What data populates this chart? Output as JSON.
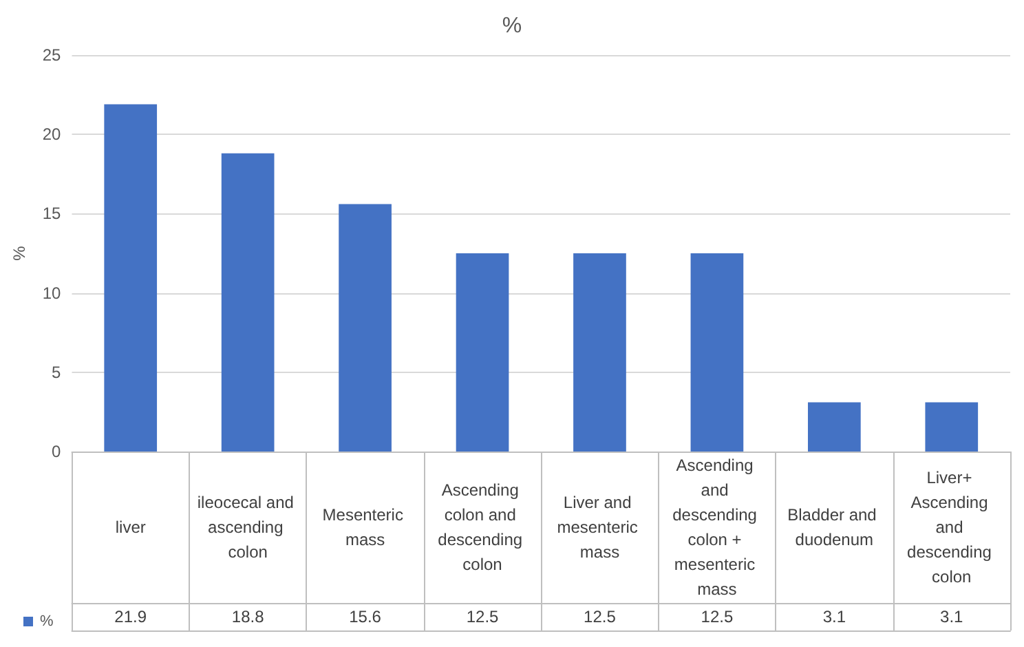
{
  "chart_data": {
    "type": "bar",
    "title": "%",
    "ylabel": "%",
    "categories": [
      "liver",
      "ileocecal and ascending colon",
      "Mesenteric mass",
      "Ascending colon and descending colon",
      "Liver and mesenteric mass",
      "Ascending and descending colon + mesenteric mass",
      "Bladder and duodenum",
      "Liver+ Ascending and descending colon"
    ],
    "series": [
      {
        "name": "%",
        "color": "#4472c4",
        "values": [
          21.9,
          18.8,
          15.6,
          12.5,
          12.5,
          12.5,
          3.1,
          3.1
        ]
      }
    ],
    "ylim": [
      0,
      25
    ],
    "yticks": [
      0,
      5,
      10,
      15,
      20,
      25
    ],
    "grid": "y",
    "legend": "bottom left",
    "data_labels": true
  }
}
